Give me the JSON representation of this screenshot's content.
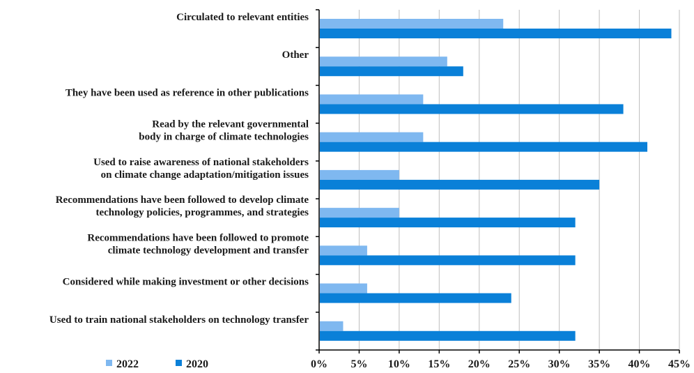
{
  "chart_data": {
    "type": "bar",
    "orientation": "horizontal",
    "categories": [
      [
        "Circulated to relevant entities"
      ],
      [
        "Other"
      ],
      [
        "They have been used as reference in other publications"
      ],
      [
        "Read by the relevant governmental",
        "body in charge of climate technologies"
      ],
      [
        "Used to raise awareness of national stakeholders",
        "on climate change adaptation/mitigation issues"
      ],
      [
        "Recommendations have been followed to develop climate",
        "technology policies, programmes, and strategies"
      ],
      [
        "Recommendations have been followed to promote",
        "climate technology development and transfer"
      ],
      [
        "Considered while making investment or other decisions"
      ],
      [
        "Used to train national stakeholders on technology transfer"
      ]
    ],
    "series": [
      {
        "name": "2022",
        "color": "#7fb8f0",
        "values": [
          23,
          16,
          13,
          13,
          10,
          10,
          6,
          6,
          3
        ]
      },
      {
        "name": "2020",
        "color": "#0a80d8",
        "values": [
          44,
          18,
          38,
          41,
          35,
          32,
          32,
          24,
          32
        ]
      }
    ],
    "xlim": [
      0,
      45
    ],
    "xticks": [
      0,
      5,
      10,
      15,
      20,
      25,
      30,
      35,
      40,
      45
    ],
    "xtick_labels": [
      "0%",
      "5%",
      "10%",
      "15%",
      "20%",
      "25%",
      "30%",
      "35%",
      "40%",
      "45%"
    ],
    "grid": "vertical",
    "legend_position": "bottom-left",
    "title": "",
    "xlabel": "",
    "ylabel": ""
  }
}
